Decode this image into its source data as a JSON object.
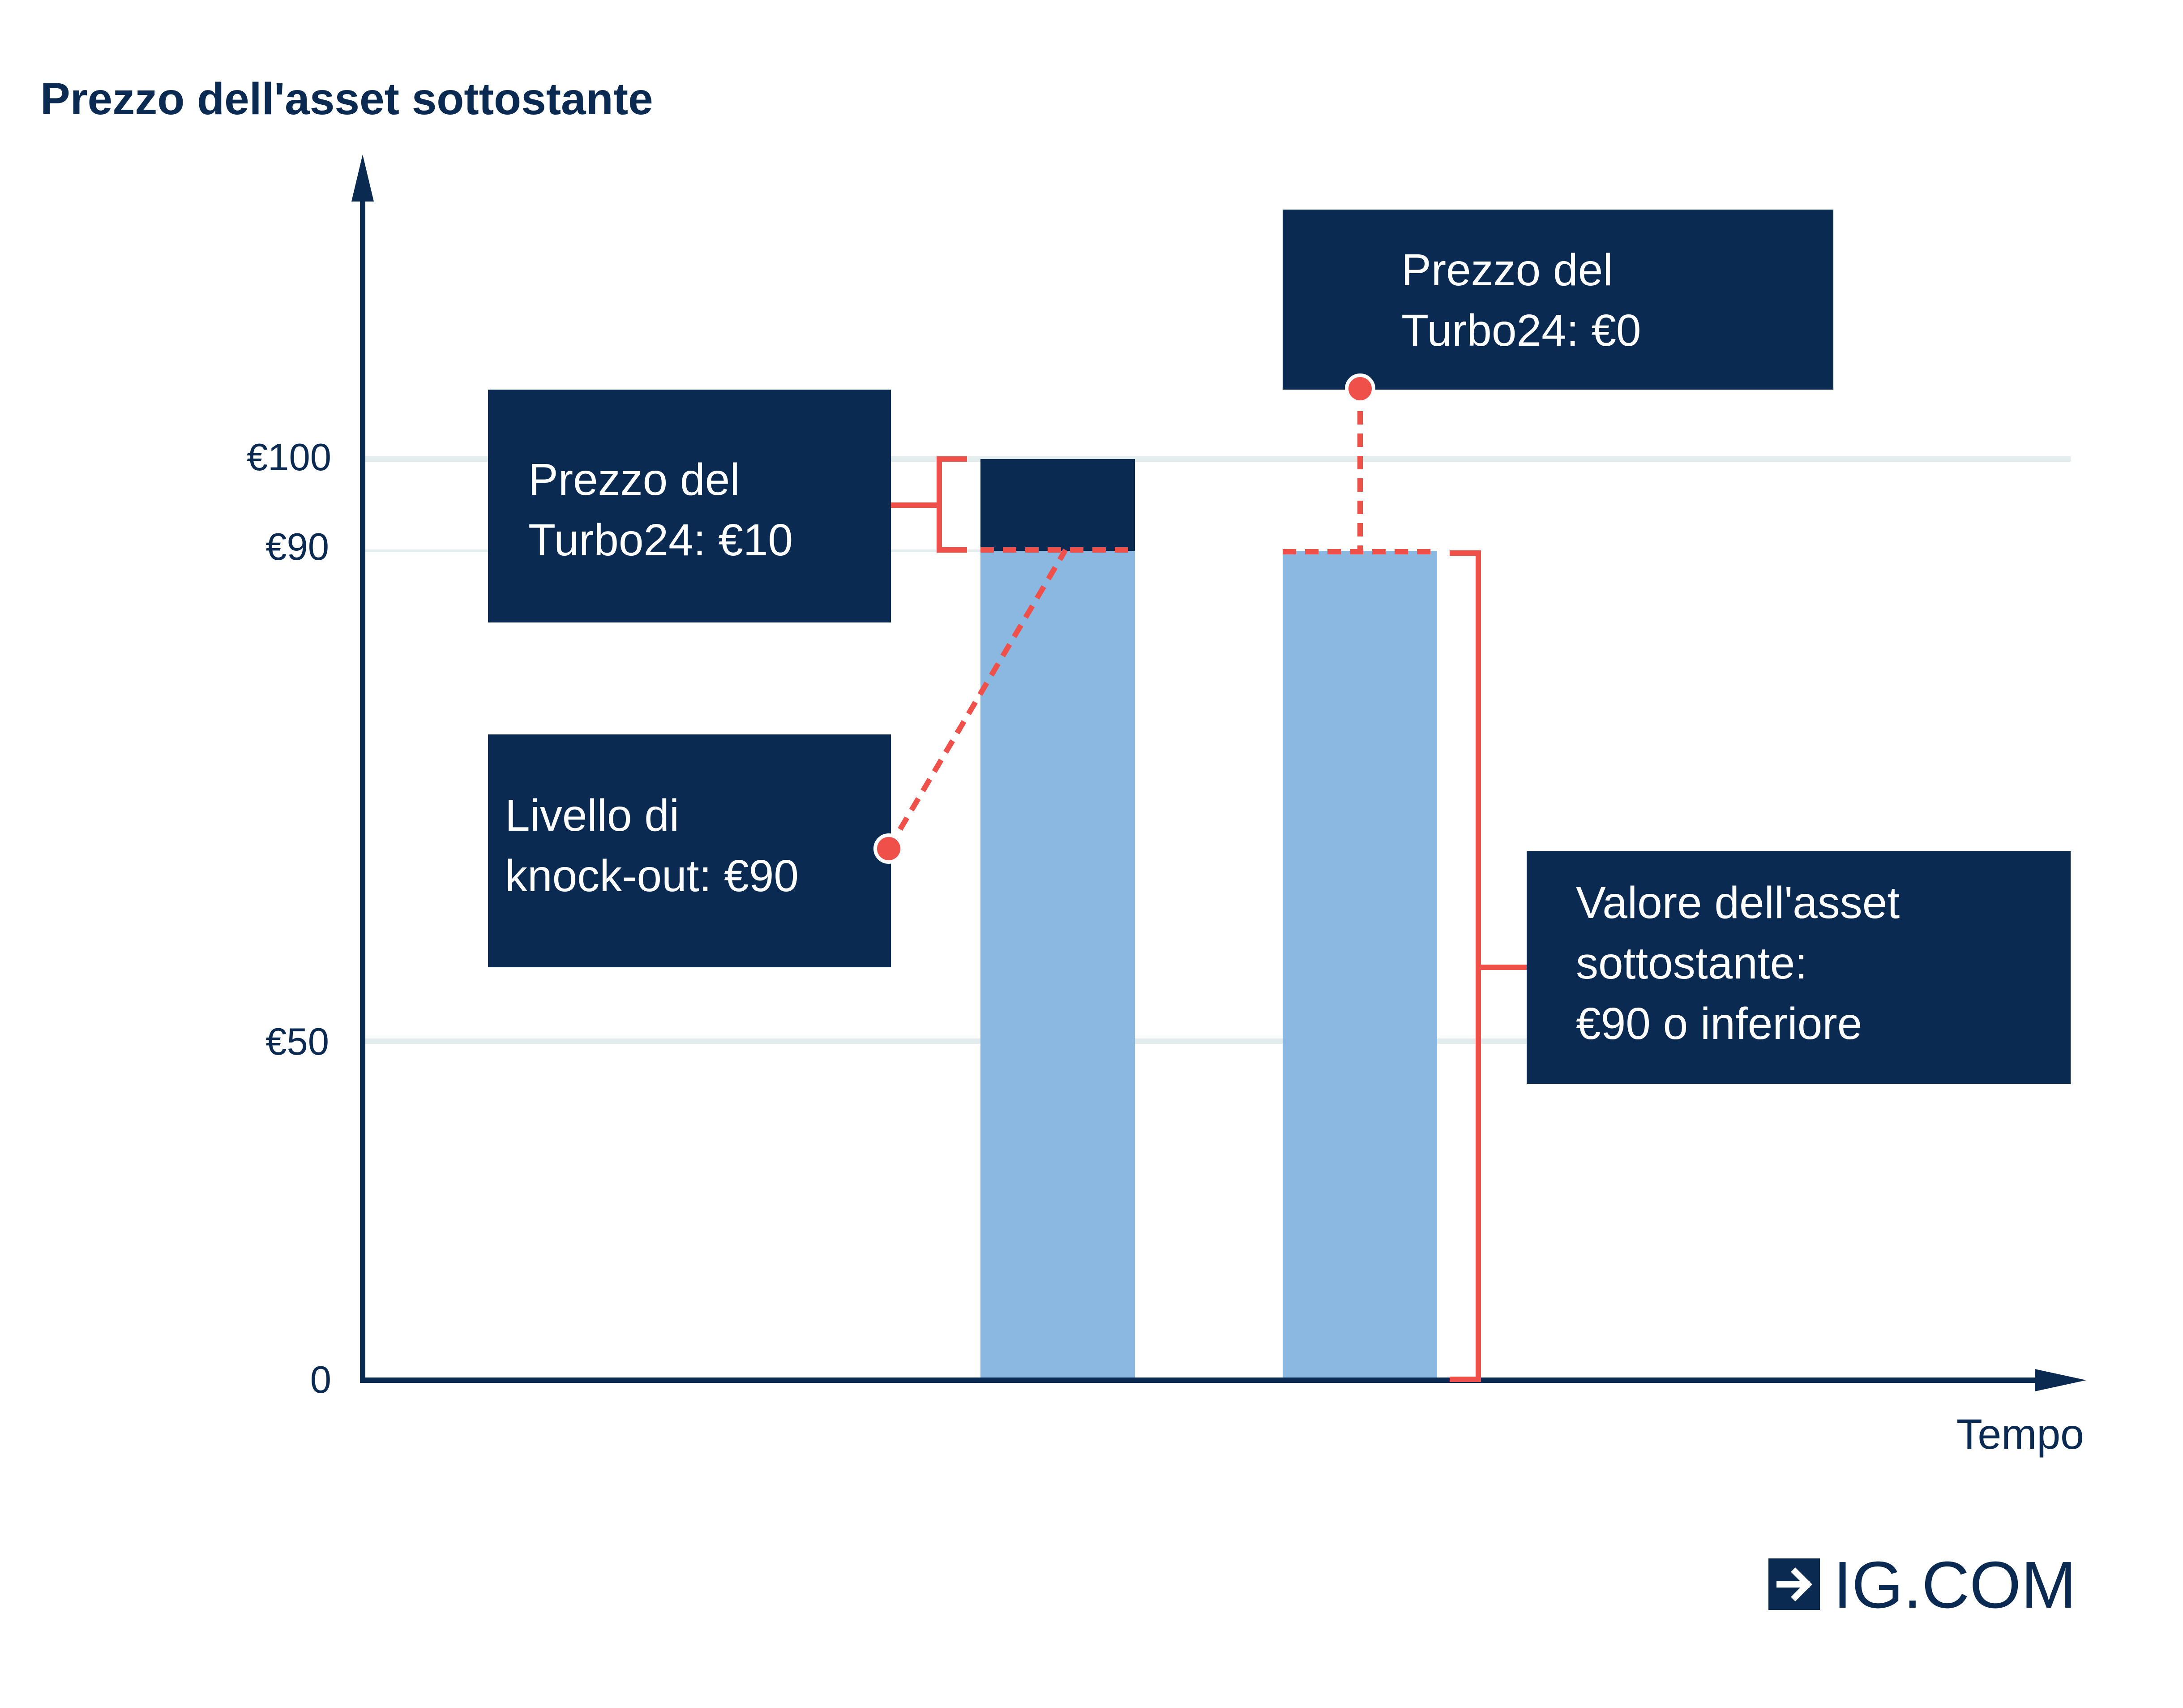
{
  "colors": {
    "navy": "#0a2a52",
    "bar_blue": "#8bb8e0",
    "accent_red": "#f0504a",
    "grid": "#e3ecec",
    "background": "#ffffff"
  },
  "chart_data": {
    "type": "bar",
    "ylabel": "Prezzo dell'asset sottostante",
    "xlabel": "Tempo",
    "ylim": [
      0,
      120
    ],
    "yticks": [
      {
        "value": 0,
        "label": "0"
      },
      {
        "value": 50,
        "label": "€50"
      },
      {
        "value": 90,
        "label": "€90"
      },
      {
        "value": 100,
        "label": "€100"
      }
    ],
    "grid": true,
    "bars": [
      {
        "base": 90,
        "turbo_segment": 10
      },
      {
        "base": 90,
        "turbo_segment": 0
      }
    ],
    "annotations": {
      "turbo_price_10": [
        "Prezzo del",
        "Turbo24: €10"
      ],
      "knockout_level": [
        "Livello di",
        "knock-out: €90"
      ],
      "turbo_price_0": [
        "Prezzo del",
        "Turbo24: €0"
      ],
      "underlying_value": [
        "Valore dell'asset",
        "sottostante:",
        "€90 o inferiore"
      ]
    }
  },
  "logo": {
    "text": "IG.COM",
    "icon": "arrow-right-icon"
  }
}
